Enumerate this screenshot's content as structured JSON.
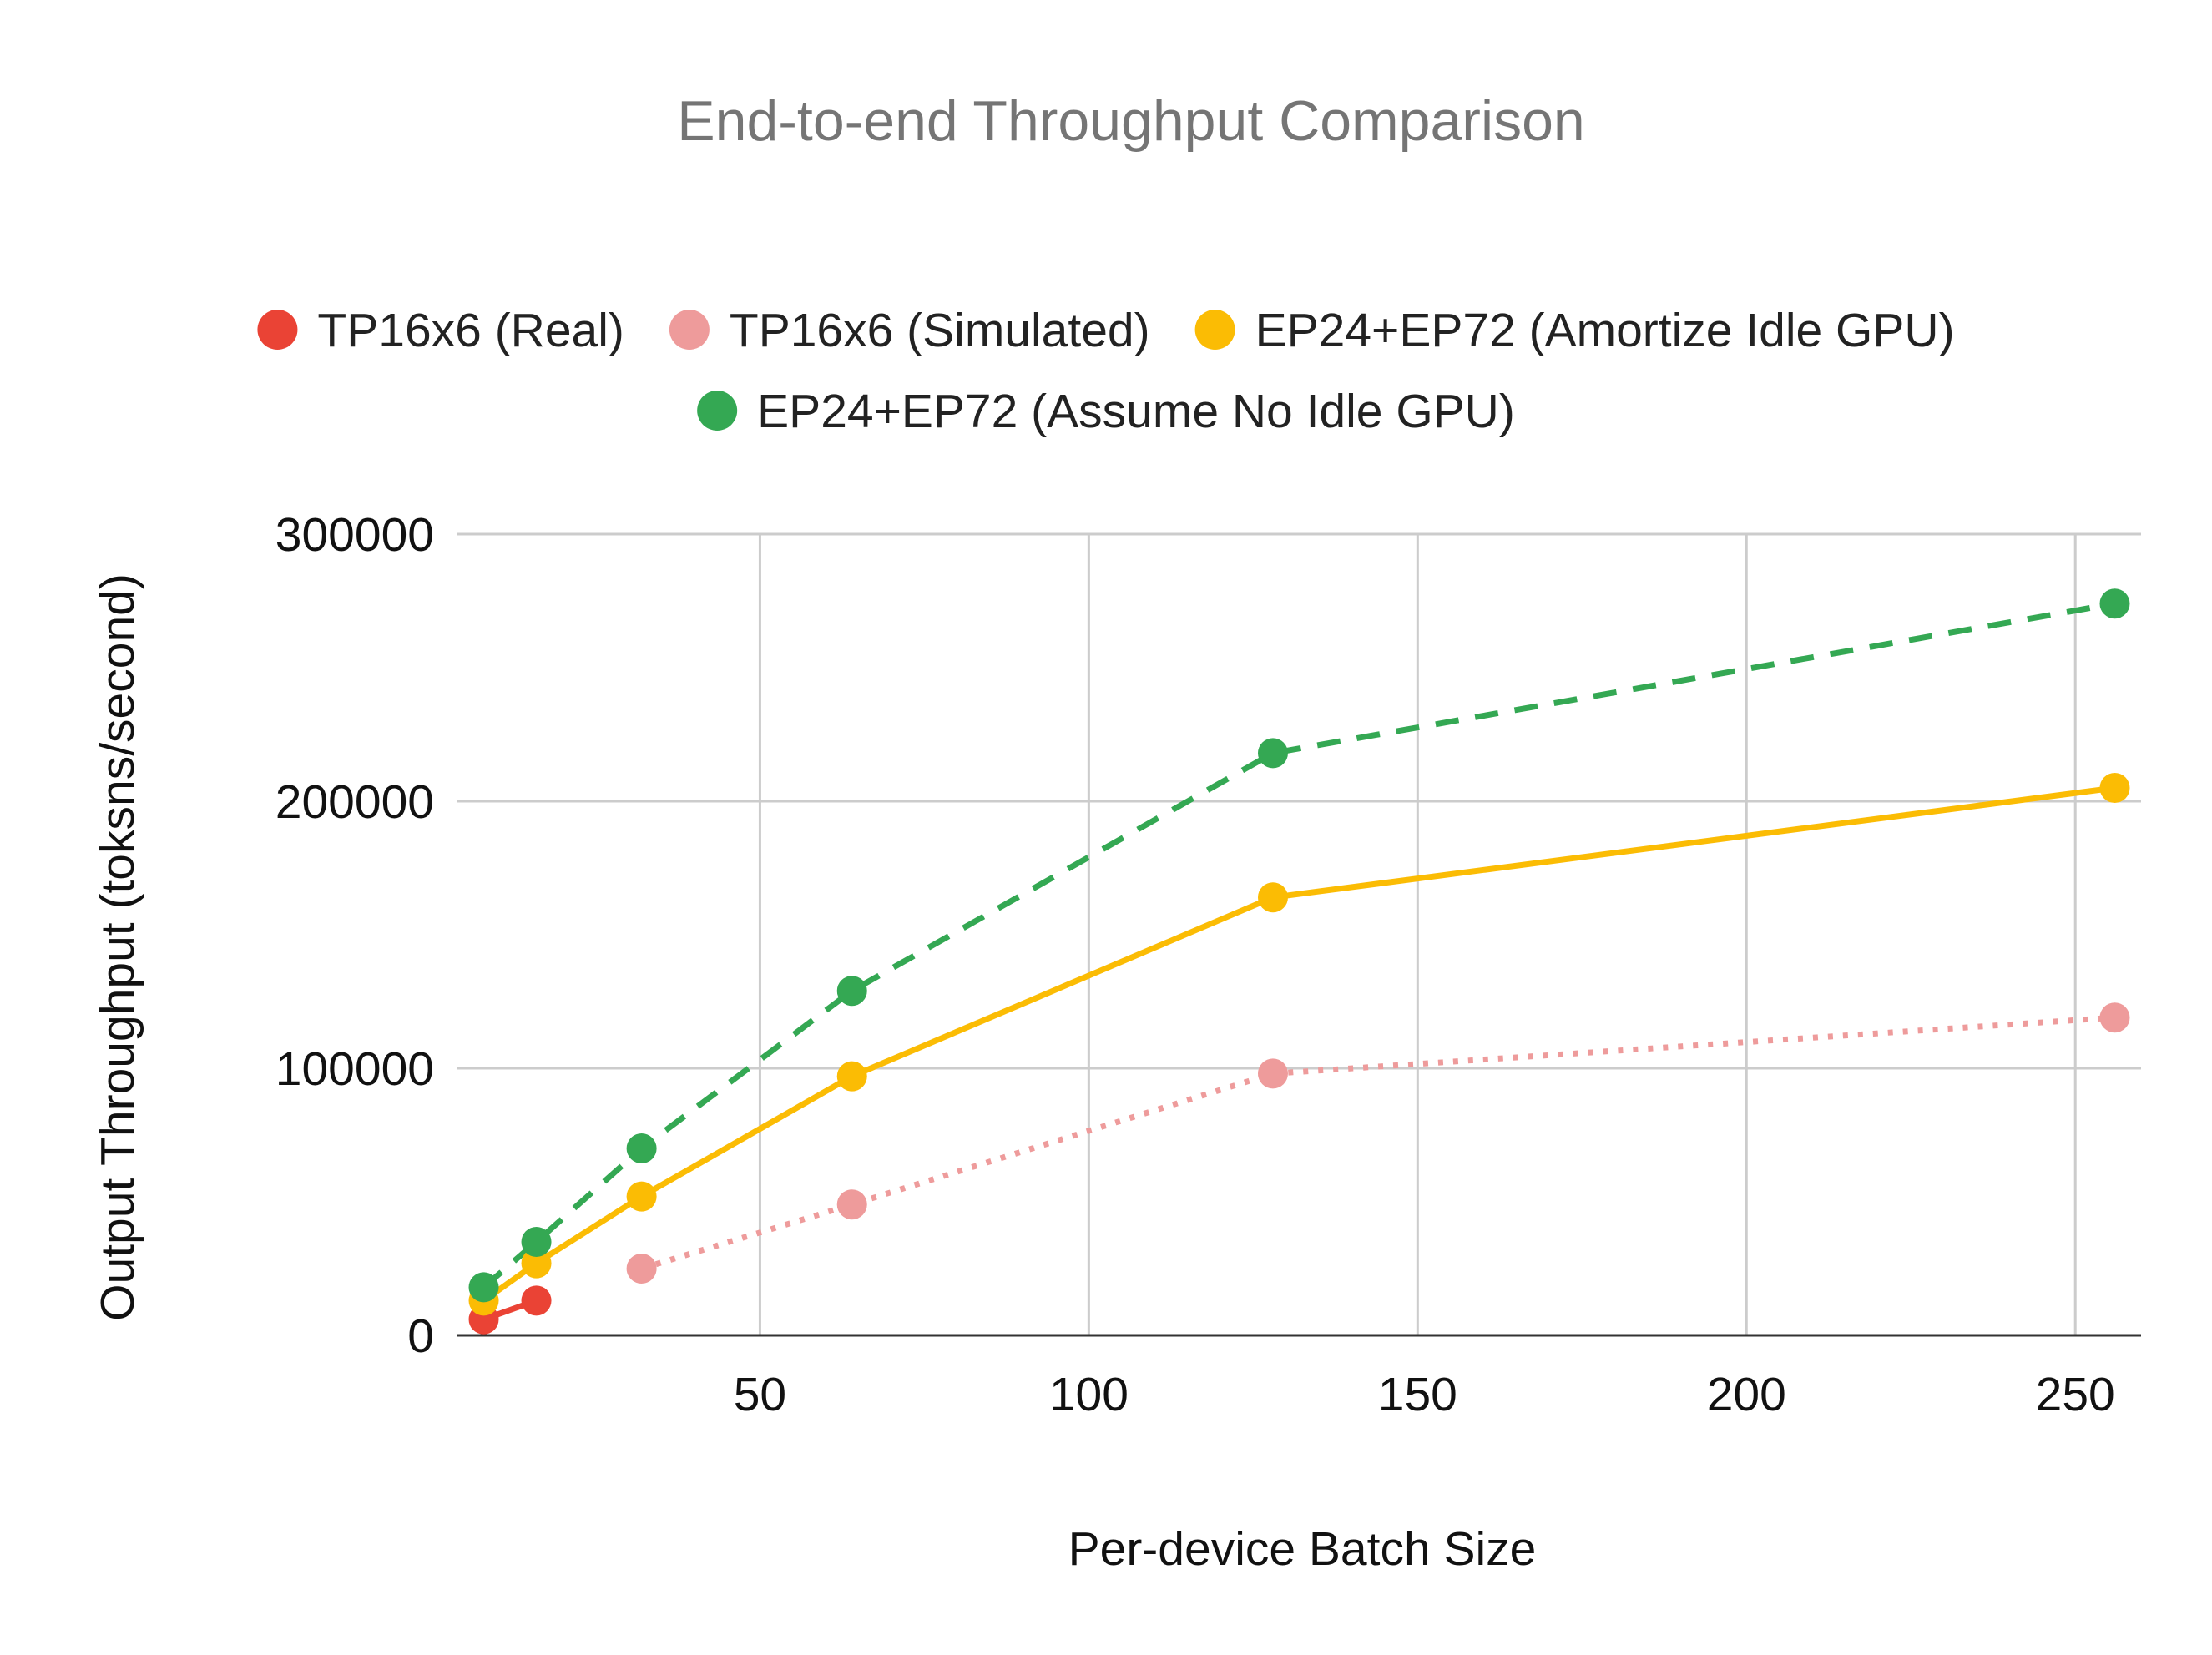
{
  "chart_data": {
    "type": "line",
    "title": "End-to-end Throughput Comparison",
    "xlabel": "Per-device Batch Size",
    "ylabel": "Output Throughput (toksns/second)",
    "xlim": [
      4,
      260
    ],
    "ylim": [
      0,
      300000
    ],
    "x_ticks": [
      50,
      100,
      150,
      200,
      250
    ],
    "y_ticks": [
      0,
      100000,
      200000,
      300000
    ],
    "grid": true,
    "legend_position": "top",
    "series": [
      {
        "name": "TP16x6 (Real)",
        "color": "#EA4335",
        "line_style": "solid",
        "x": [
          8,
          16
        ],
        "y": [
          6000,
          13000
        ]
      },
      {
        "name": "TP16x6 (Simulated)",
        "color": "#EE9B9B",
        "line_style": "dotted",
        "x": [
          32,
          64,
          128,
          256
        ],
        "y": [
          25000,
          49000,
          98000,
          119000
        ]
      },
      {
        "name": "EP24+EP72 (Amortize Idle GPU)",
        "color": "#FBBC04",
        "line_style": "solid",
        "x": [
          8,
          16,
          32,
          64,
          128,
          256
        ],
        "y": [
          13000,
          27000,
          52000,
          97000,
          164000,
          205000
        ]
      },
      {
        "name": "EP24+EP72 (Assume No Idle GPU)",
        "color": "#34A853",
        "line_style": "dashed",
        "x": [
          8,
          16,
          32,
          64,
          128,
          256
        ],
        "y": [
          18000,
          35000,
          70000,
          129000,
          218000,
          274000
        ]
      }
    ]
  }
}
